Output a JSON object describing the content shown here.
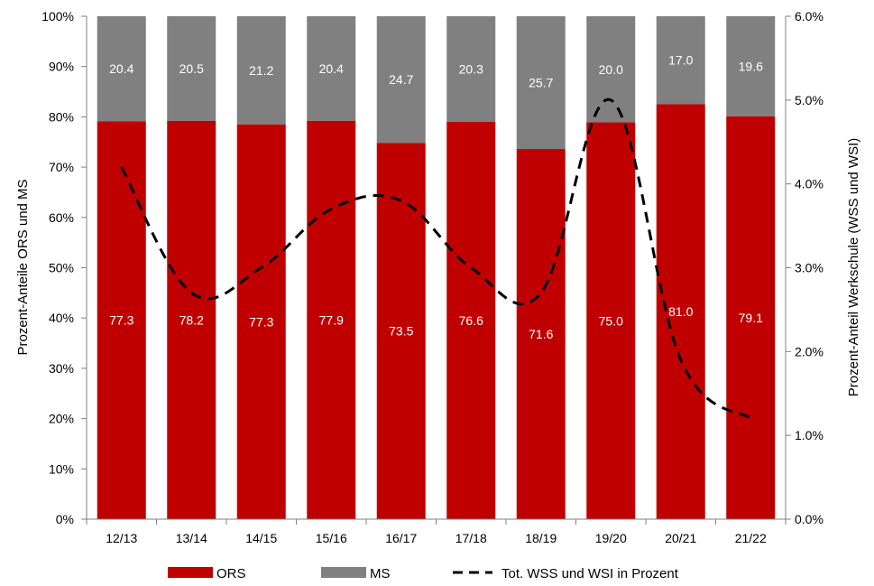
{
  "chart_data": {
    "type": "bar",
    "stacked": true,
    "categories": [
      "12/13",
      "13/14",
      "14/15",
      "15/16",
      "16/17",
      "17/18",
      "18/19",
      "19/20",
      "20/21",
      "21/22"
    ],
    "series": [
      {
        "name": "ORS",
        "color": "#c00000",
        "axis": "left",
        "values": [
          77.3,
          78.2,
          77.3,
          77.9,
          73.5,
          76.6,
          71.6,
          75.0,
          81.0,
          79.1
        ],
        "stack_share_percent": [
          79.1,
          79.2,
          78.5,
          79.2,
          74.8,
          79.0,
          73.6,
          78.9,
          82.5,
          80.1
        ]
      },
      {
        "name": "MS",
        "color": "#808080",
        "axis": "left",
        "values": [
          20.4,
          20.5,
          21.2,
          20.4,
          24.7,
          20.3,
          25.7,
          20.0,
          17.0,
          19.6
        ]
      },
      {
        "name": "Tot. WSS und WSI in Prozent",
        "type": "line",
        "style": "dashed",
        "color": "#000000",
        "axis": "right",
        "values": [
          4.2,
          2.7,
          3.0,
          3.7,
          3.8,
          3.0,
          2.7,
          5.0,
          1.9,
          1.2
        ]
      }
    ],
    "ylabel": "Prozent-Anteile ORS und MS",
    "y2label": "Prozent-Anteil Werkschule (WSS und WSI)",
    "ylim": [
      0,
      100
    ],
    "y2lim": [
      0,
      6
    ],
    "yticks": [
      "0%",
      "10%",
      "20%",
      "30%",
      "40%",
      "50%",
      "60%",
      "70%",
      "80%",
      "90%",
      "100%"
    ],
    "y2ticks": [
      "0.0%",
      "1.0%",
      "2.0%",
      "3.0%",
      "4.0%",
      "5.0%",
      "6.0%"
    ],
    "grid": false,
    "legend": "bottom"
  }
}
